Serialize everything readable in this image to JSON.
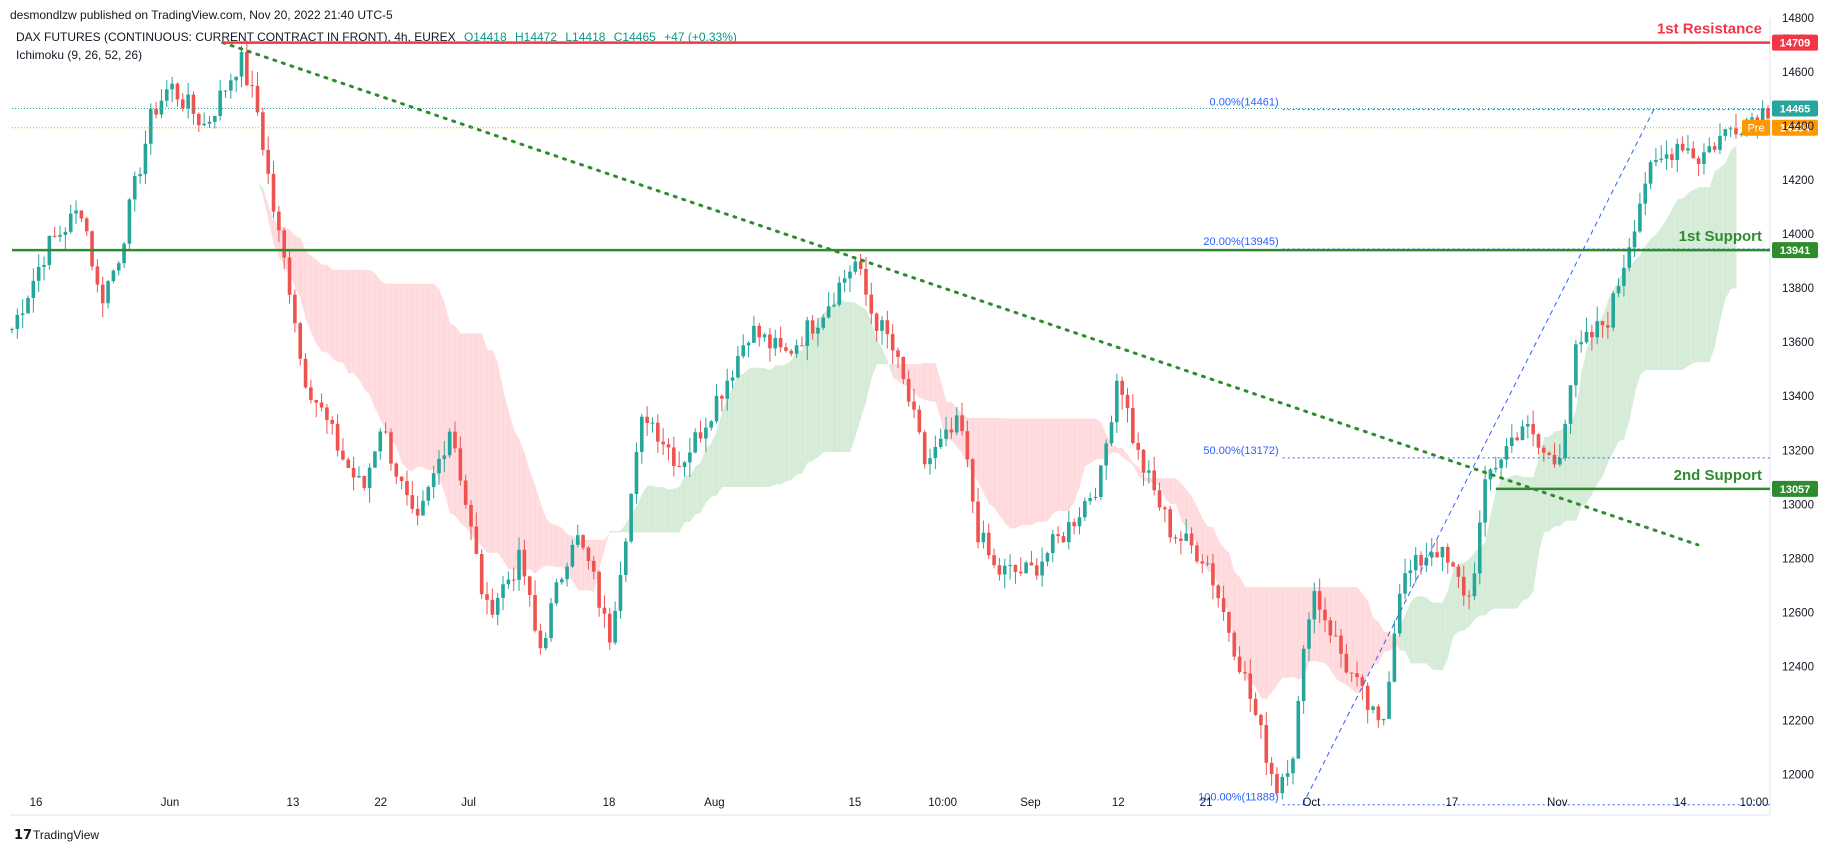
{
  "publisher": "desmondlzw published on TradingView.com, Nov 20, 2022 21:40 UTC-5",
  "symbol_line": {
    "name": "DAX FUTURES (CONTINUOUS: CURRENT CONTRACT IN FRONT), 4h, EUREX",
    "open": "O14418",
    "high": "H14472",
    "low": "L14418",
    "close": "C14465",
    "change": "+47 (+0.33%)"
  },
  "indicator": "Ichimoku (9, 26, 52, 26)",
  "currency": "EUR",
  "footer_brand": "TradingView",
  "colors": {
    "up": "#26a69a",
    "down": "#ef5350",
    "resistance": "#f23645",
    "support": "#2e8b2e",
    "fib": "#2962ff",
    "trend": "#2e8b2e",
    "cloud_bull": "#c8e6c9",
    "cloud_bear": "#ffcdd2",
    "pre": "#ff9800"
  },
  "chart_data": {
    "type": "candlestick",
    "title": "DAX FUTURES 4h",
    "ylim": [
      11850,
      14800
    ],
    "y_ticks": [
      14800,
      14600,
      14400,
      14200,
      14000,
      13800,
      13600,
      13400,
      13200,
      13000,
      12800,
      12600,
      12400,
      12200,
      12000
    ],
    "x_labels": [
      {
        "t": 0.0,
        "label": "16"
      },
      {
        "t": 0.09,
        "label": "Jun"
      },
      {
        "t": 0.16,
        "label": "13"
      },
      {
        "t": 0.21,
        "label": "22"
      },
      {
        "t": 0.26,
        "label": "Jul"
      },
      {
        "t": 0.34,
        "label": "18"
      },
      {
        "t": 0.4,
        "label": "Aug"
      },
      {
        "t": 0.48,
        "label": "15"
      },
      {
        "t": 0.53,
        "label": "10:00"
      },
      {
        "t": 0.58,
        "label": "Sep"
      },
      {
        "t": 0.63,
        "label": "12"
      },
      {
        "t": 0.68,
        "label": "21"
      },
      {
        "t": 0.74,
        "label": "Oct"
      },
      {
        "t": 0.82,
        "label": "17"
      },
      {
        "t": 0.88,
        "label": "Nov"
      },
      {
        "t": 0.95,
        "label": "14"
      },
      {
        "t": 1.0,
        "label": "10:00"
      }
    ],
    "price_path": [
      [
        0.0,
        13650
      ],
      [
        0.02,
        13950
      ],
      [
        0.04,
        14100
      ],
      [
        0.05,
        13750
      ],
      [
        0.06,
        13900
      ],
      [
        0.08,
        14450
      ],
      [
        0.09,
        14550
      ],
      [
        0.11,
        14400
      ],
      [
        0.13,
        14650
      ],
      [
        0.14,
        14450
      ],
      [
        0.15,
        14050
      ],
      [
        0.16,
        13750
      ],
      [
        0.165,
        13500
      ],
      [
        0.19,
        13150
      ],
      [
        0.2,
        13050
      ],
      [
        0.21,
        13300
      ],
      [
        0.23,
        12900
      ],
      [
        0.25,
        13300
      ],
      [
        0.27,
        12600
      ],
      [
        0.29,
        12800
      ],
      [
        0.3,
        12450
      ],
      [
        0.32,
        12900
      ],
      [
        0.33,
        12750
      ],
      [
        0.34,
        12500
      ],
      [
        0.36,
        13350
      ],
      [
        0.38,
        13150
      ],
      [
        0.39,
        13250
      ],
      [
        0.41,
        13500
      ],
      [
        0.42,
        13650
      ],
      [
        0.44,
        13550
      ],
      [
        0.46,
        13700
      ],
      [
        0.48,
        13900
      ],
      [
        0.49,
        13700
      ],
      [
        0.5,
        13600
      ],
      [
        0.51,
        13400
      ],
      [
        0.52,
        13150
      ],
      [
        0.54,
        13300
      ],
      [
        0.55,
        12900
      ],
      [
        0.56,
        12750
      ],
      [
        0.58,
        12750
      ],
      [
        0.6,
        12900
      ],
      [
        0.62,
        13100
      ],
      [
        0.63,
        13500
      ],
      [
        0.64,
        13200
      ],
      [
        0.66,
        12900
      ],
      [
        0.68,
        12800
      ],
      [
        0.7,
        12400
      ],
      [
        0.72,
        11950
      ],
      [
        0.73,
        12100
      ],
      [
        0.74,
        12700
      ],
      [
        0.76,
        12400
      ],
      [
        0.78,
        12150
      ],
      [
        0.79,
        12700
      ],
      [
        0.81,
        12850
      ],
      [
        0.83,
        12650
      ],
      [
        0.84,
        13100
      ],
      [
        0.86,
        13300
      ],
      [
        0.87,
        13200
      ],
      [
        0.88,
        13150
      ],
      [
        0.89,
        13550
      ],
      [
        0.91,
        13700
      ],
      [
        0.93,
        14200
      ],
      [
        0.95,
        14350
      ],
      [
        0.96,
        14280
      ],
      [
        0.98,
        14400
      ],
      [
        1.0,
        14465
      ]
    ],
    "horizontal_levels": [
      {
        "name": "1st Resistance",
        "value": 14709,
        "label": "14709",
        "role": "resistance"
      },
      {
        "name": "1st Support",
        "value": 13941,
        "label": "13941",
        "role": "support"
      },
      {
        "name": "2nd Support",
        "value": 13057,
        "label": "13057",
        "role": "support"
      }
    ],
    "current_price": {
      "value": 14465,
      "label": "14465"
    },
    "pre_market": {
      "tag": "Pre",
      "value": 14394,
      "label": "14394"
    },
    "fibonacci": [
      {
        "label": "0.00%(14461)",
        "value": 14461
      },
      {
        "label": "20.00%(13945)",
        "value": 13945
      },
      {
        "label": "50.00%(13172)",
        "value": 13172
      },
      {
        "label": "100.00%(11888)",
        "value": 11888
      }
    ],
    "trendline": {
      "start": [
        0.12,
        14709
      ],
      "end": [
        0.96,
        12850
      ]
    },
    "fib_diagonal": {
      "start": [
        0.735,
        11888
      ],
      "end": [
        0.935,
        14461
      ]
    }
  }
}
